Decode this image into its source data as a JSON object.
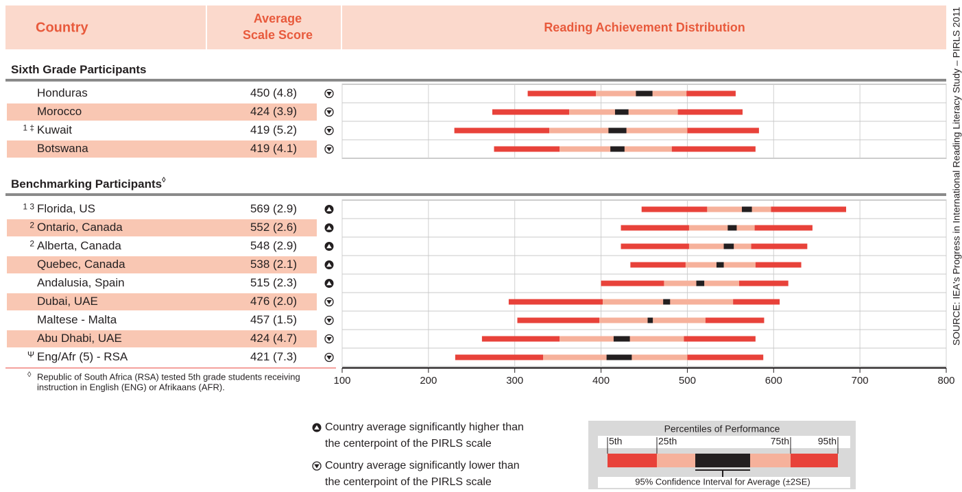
{
  "chart_data": {
    "type": "percentile_distribution",
    "headers": {
      "country": "Country",
      "score": [
        "Average",
        "Scale Score"
      ],
      "distribution": "Reading Achievement Distribution"
    },
    "xlim": [
      100,
      800
    ],
    "xticks": [
      100,
      200,
      300,
      400,
      500,
      600,
      700,
      800
    ],
    "grid": true,
    "colors": {
      "outer": "#e8423a",
      "inner": "#f6b19b",
      "ci": "#231f20",
      "header_bg": "#fbd9cc",
      "header_text": "#e85a3c",
      "row_alt": "#f9c7b3"
    },
    "groups": [
      {
        "title": "Sixth Grade Participants",
        "rows": [
          {
            "notes": null,
            "country": "Honduras",
            "mean": 450,
            "se": 4.8,
            "label": "450 (4.8)",
            "significance": "lower",
            "percentiles": [
              315,
              394,
              499,
              556
            ]
          },
          {
            "notes": null,
            "country": "Morocco",
            "mean": 424,
            "se": 3.9,
            "label": "424 (3.9)",
            "significance": "lower",
            "percentiles": [
              274,
              363,
              489,
              564
            ]
          },
          {
            "notes": "1 ‡",
            "country": "Kuwait",
            "mean": 419,
            "se": 5.2,
            "label": "419 (5.2)",
            "significance": "lower",
            "percentiles": [
              230,
              340,
              500,
              583
            ]
          },
          {
            "notes": null,
            "country": "Botswana",
            "mean": 419,
            "se": 4.1,
            "label": "419 (4.1)",
            "significance": "lower",
            "percentiles": [
              276,
              352,
              482,
              579
            ]
          }
        ]
      },
      {
        "title": "Benchmarking Participants",
        "title_note": "◊",
        "rows": [
          {
            "notes": "1 3",
            "country": "Florida, US",
            "mean": 569,
            "se": 2.9,
            "label": "569 (2.9)",
            "significance": "higher",
            "percentiles": [
              447,
              523,
              597,
              684
            ]
          },
          {
            "notes": "2",
            "country": "Ontario, Canada",
            "mean": 552,
            "se": 2.6,
            "label": "552 (2.6)",
            "significance": "higher",
            "percentiles": [
              423,
              502,
              578,
              645
            ]
          },
          {
            "notes": "2",
            "country": "Alberta, Canada",
            "mean": 548,
            "se": 2.9,
            "label": "548 (2.9)",
            "significance": "higher",
            "percentiles": [
              423,
              502,
              574,
              639
            ]
          },
          {
            "notes": null,
            "country": "Quebec, Canada",
            "mean": 538,
            "se": 2.1,
            "label": "538 (2.1)",
            "significance": "higher",
            "percentiles": [
              434,
              498,
              579,
              632
            ]
          },
          {
            "notes": null,
            "country": "Andalusia, Spain",
            "mean": 515,
            "se": 2.3,
            "label": "515 (2.3)",
            "significance": "higher",
            "percentiles": [
              400,
              473,
              560,
              617
            ]
          },
          {
            "notes": null,
            "country": "Dubai, UAE",
            "mean": 476,
            "se": 2.0,
            "label": "476 (2.0)",
            "significance": "lower",
            "percentiles": [
              293,
              402,
              553,
              607
            ]
          },
          {
            "notes": null,
            "country": "Maltese - Malta",
            "mean": 457,
            "se": 1.5,
            "label": "457 (1.5)",
            "significance": "lower",
            "percentiles": [
              303,
              398,
              521,
              589
            ]
          },
          {
            "notes": null,
            "country": "Abu Dhabi, UAE",
            "mean": 424,
            "se": 4.7,
            "label": "424 (4.7)",
            "significance": "lower",
            "percentiles": [
              262,
              352,
              496,
              579
            ]
          },
          {
            "notes": "Ψ",
            "country": "Eng/Afr (5) - RSA",
            "mean": 421,
            "se": 7.3,
            "label": "421 (7.3)",
            "significance": "lower",
            "percentiles": [
              231,
              333,
              500,
              588
            ]
          }
        ]
      }
    ],
    "footnote": {
      "marker": "◊",
      "lines": [
        "Republic of South Africa (RSA) tested 5th grade students receiving",
        "instruction in English (ENG) or Afrikaans (AFR)."
      ]
    },
    "legend": {
      "higher": [
        "Country average significantly higher than",
        "the centerpoint of the PIRLS scale"
      ],
      "lower": [
        "Country average significantly lower than",
        "the centerpoint of the PIRLS scale"
      ],
      "percentiles_title": "Percentiles of Performance",
      "percentile_labels": [
        "5th",
        "25th",
        "75th",
        "95th"
      ],
      "ci_label": "95% Confidence Interval for Average (±2SE)"
    },
    "source": "SOURCE: IEA's Progress in International Reading Literacy Study – PIRLS 2011"
  }
}
